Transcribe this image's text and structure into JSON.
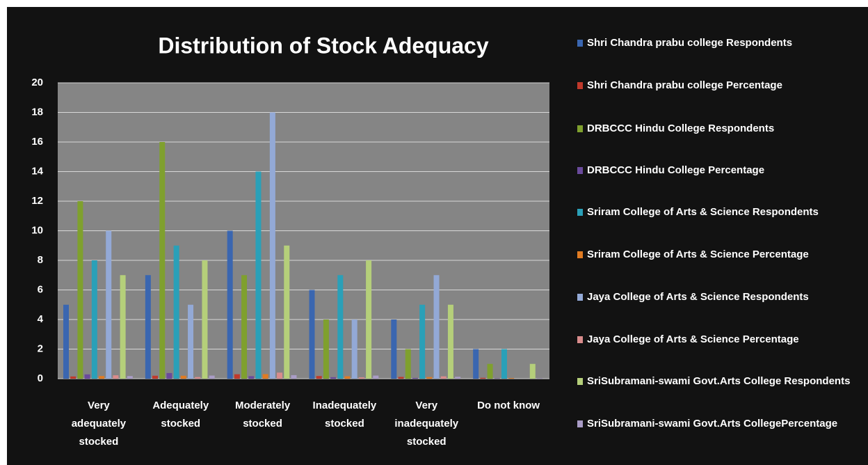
{
  "chart_data": {
    "type": "bar",
    "title": "Distribution of Stock Adequacy",
    "categories": [
      "Very adequately stocked",
      "Adequately stocked",
      "Moderately stocked",
      "Inadequately stocked",
      "Very inadequately stocked",
      "Do not know"
    ],
    "series": [
      {
        "name": "Shri Chandra prabu college Respondents",
        "color": "#3a66b0",
        "values": [
          5,
          7,
          10,
          6,
          4,
          2
        ]
      },
      {
        "name": "Shri Chandra prabu college Percentage",
        "color": "#c0392b",
        "values": [
          0.15,
          0.2,
          0.3,
          0.18,
          0.12,
          0.06
        ]
      },
      {
        "name": "DRBCCC Hindu College Respondents",
        "color": "#7fa02e",
        "values": [
          12,
          16,
          7,
          4,
          2,
          1
        ]
      },
      {
        "name": "DRBCCC Hindu College Percentage",
        "color": "#6a4a9c",
        "values": [
          0.29,
          0.38,
          0.17,
          0.1,
          0.05,
          0.02
        ]
      },
      {
        "name": "Sriram College of Arts & Science Respondents",
        "color": "#2aa0b8",
        "values": [
          8,
          9,
          14,
          7,
          5,
          2
        ]
      },
      {
        "name": "Sriram College of Arts & Science  Percentage",
        "color": "#e07b22",
        "values": [
          0.18,
          0.2,
          0.31,
          0.16,
          0.11,
          0.04
        ]
      },
      {
        "name": "Jaya College of Arts & Science  Respondents",
        "color": "#93a9d6",
        "values": [
          10,
          5,
          18,
          4,
          7,
          0
        ]
      },
      {
        "name": "Jaya College of Arts & Science  Percentage",
        "color": "#d98c8c",
        "values": [
          0.23,
          0.11,
          0.41,
          0.09,
          0.16,
          0
        ]
      },
      {
        "name": "SriSubramani-swami  Govt.Arts College Respondents",
        "color": "#b5cf7a",
        "values": [
          7,
          8,
          9,
          8,
          5,
          1
        ]
      },
      {
        "name": "SriSubramani-swami  Govt.Arts CollegePercentage",
        "color": "#a99cc6",
        "values": [
          0.18,
          0.21,
          0.24,
          0.21,
          0.13,
          0.03
        ]
      }
    ],
    "ylim": [
      0,
      20
    ],
    "yticks": [
      0,
      2,
      4,
      6,
      8,
      10,
      12,
      14,
      16,
      18,
      20
    ],
    "grid": true
  }
}
